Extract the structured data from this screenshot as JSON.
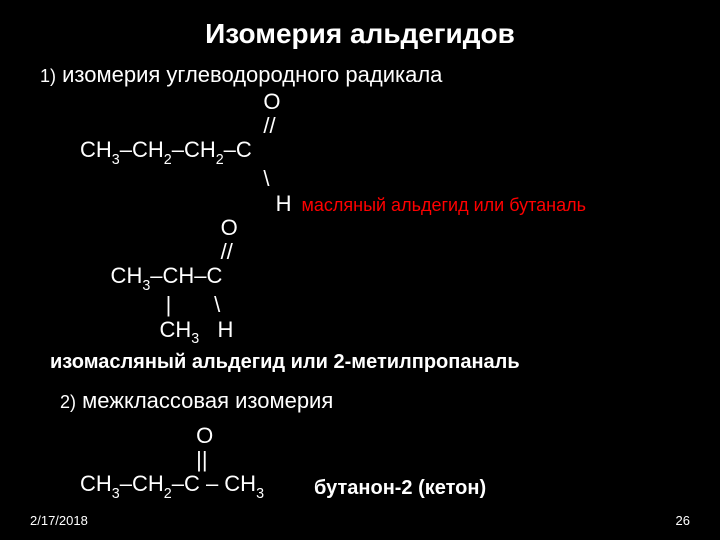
{
  "title": "Изомерия альдегидов",
  "section1": {
    "num": "1)",
    "head": "изомерия углеводородного радикала"
  },
  "f1": {
    "l1": "                              O",
    "l2": "                              //",
    "l3a": "CH",
    "l3b": "3",
    "l3c": "–CH",
    "l3d": "2",
    "l3e": "–CH",
    "l3f": "2",
    "l3g": "–C",
    "l4": "                              \\",
    "l5": "                                H",
    "annot1": "  масляный альдегид или бутаналь"
  },
  "f2": {
    "l1": "                       O",
    "l2": "                       //",
    "l3a": "     CH",
    "l3b": "3",
    "l3c": "–CH–C",
    "l4": "              |       \\",
    "l5a": "             CH",
    "l5b": "3",
    "l5c": "   H"
  },
  "iso2": "изомасляный альдегид или 2-метилпропаналь",
  "section2": {
    "num": "2)",
    "head": "межклассовая изомерия"
  },
  "f3": {
    "l1": "                   O",
    "l2": "                   ||",
    "l3a": "CH",
    "l3b": "3",
    "l3c": "–CH",
    "l3d": "2",
    "l3e": "–C – CH",
    "l3f": "3"
  },
  "ketone": "бутанон-2 (кетон)",
  "footer": {
    "date": "2/17/2018",
    "page": "26"
  },
  "colors": {
    "bg": "#000000",
    "text": "#ffffff",
    "accent": "#ff0000"
  }
}
